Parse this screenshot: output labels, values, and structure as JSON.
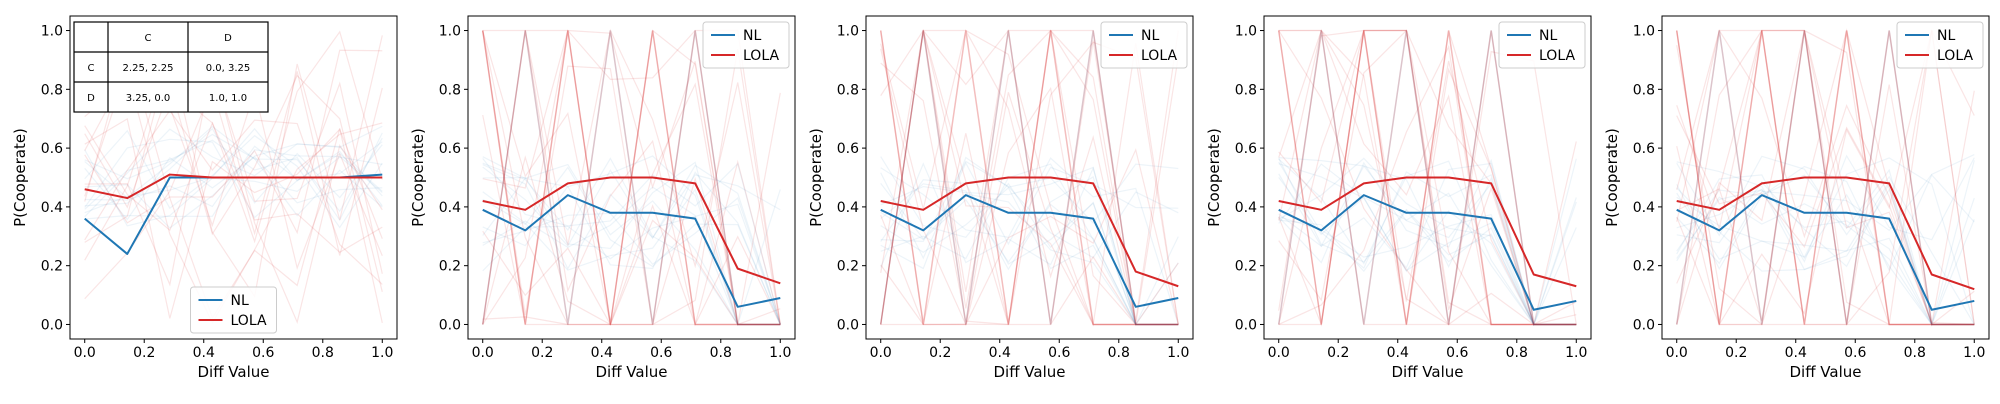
{
  "colors": {
    "nl": "#1f77b4",
    "lola": "#d62728"
  },
  "chart_data": [
    {
      "type": "line",
      "xlabel": "Diff Value",
      "ylabel": "P(Cooperate)",
      "xlim": [
        0.0,
        1.0
      ],
      "ylim": [
        0.0,
        1.0
      ],
      "x_ticks": [
        "0.0",
        "0.2",
        "0.4",
        "0.6",
        "0.8",
        "1.0"
      ],
      "y_ticks": [
        "0.0",
        "0.2",
        "0.4",
        "0.6",
        "0.8",
        "1.0"
      ],
      "legend_location": "lower-center",
      "x": [
        0.0,
        0.143,
        0.286,
        0.429,
        0.571,
        0.714,
        0.857,
        1.0
      ],
      "series": [
        {
          "name": "NL",
          "color": "#1f77b4",
          "values": [
            0.36,
            0.24,
            0.5,
            0.5,
            0.5,
            0.5,
            0.5,
            0.51
          ]
        },
        {
          "name": "LOLA",
          "color": "#d62728",
          "values": [
            0.46,
            0.43,
            0.51,
            0.5,
            0.5,
            0.5,
            0.5,
            0.5
          ]
        }
      ],
      "payoff_table": {
        "col_headers": [
          "C",
          "D"
        ],
        "rows": [
          {
            "label": "C",
            "cells": [
              "2.25, 2.25",
              "0.0, 3.25"
            ]
          },
          {
            "label": "D",
            "cells": [
              "3.25, 0.0",
              "1.0, 1.0"
            ]
          }
        ]
      }
    },
    {
      "type": "line",
      "xlabel": "Diff Value",
      "ylabel": "P(Cooperate)",
      "xlim": [
        0.0,
        1.0
      ],
      "ylim": [
        0.0,
        1.0
      ],
      "x_ticks": [
        "0.0",
        "0.2",
        "0.4",
        "0.6",
        "0.8",
        "1.0"
      ],
      "y_ticks": [
        "0.0",
        "0.2",
        "0.4",
        "0.6",
        "0.8",
        "1.0"
      ],
      "legend_location": "top-right",
      "x": [
        0.0,
        0.143,
        0.286,
        0.429,
        0.571,
        0.714,
        0.857,
        1.0
      ],
      "series": [
        {
          "name": "NL",
          "color": "#1f77b4",
          "values": [
            0.39,
            0.32,
            0.44,
            0.38,
            0.38,
            0.36,
            0.06,
            0.09
          ]
        },
        {
          "name": "LOLA",
          "color": "#d62728",
          "values": [
            0.42,
            0.39,
            0.48,
            0.5,
            0.5,
            0.48,
            0.19,
            0.14
          ]
        }
      ]
    },
    {
      "type": "line",
      "xlabel": "Diff Value",
      "ylabel": "P(Cooperate)",
      "xlim": [
        0.0,
        1.0
      ],
      "ylim": [
        0.0,
        1.0
      ],
      "x_ticks": [
        "0.0",
        "0.2",
        "0.4",
        "0.6",
        "0.8",
        "1.0"
      ],
      "y_ticks": [
        "0.0",
        "0.2",
        "0.4",
        "0.6",
        "0.8",
        "1.0"
      ],
      "legend_location": "top-right",
      "x": [
        0.0,
        0.143,
        0.286,
        0.429,
        0.571,
        0.714,
        0.857,
        1.0
      ],
      "series": [
        {
          "name": "NL",
          "color": "#1f77b4",
          "values": [
            0.39,
            0.32,
            0.44,
            0.38,
            0.38,
            0.36,
            0.06,
            0.09
          ]
        },
        {
          "name": "LOLA",
          "color": "#d62728",
          "values": [
            0.42,
            0.39,
            0.48,
            0.5,
            0.5,
            0.48,
            0.18,
            0.13
          ]
        }
      ]
    },
    {
      "type": "line",
      "xlabel": "Diff Value",
      "ylabel": "P(Cooperate)",
      "xlim": [
        0.0,
        1.0
      ],
      "ylim": [
        0.0,
        1.0
      ],
      "x_ticks": [
        "0.0",
        "0.2",
        "0.4",
        "0.6",
        "0.8",
        "1.0"
      ],
      "y_ticks": [
        "0.0",
        "0.2",
        "0.4",
        "0.6",
        "0.8",
        "1.0"
      ],
      "legend_location": "top-right",
      "x": [
        0.0,
        0.143,
        0.286,
        0.429,
        0.571,
        0.714,
        0.857,
        1.0
      ],
      "series": [
        {
          "name": "NL",
          "color": "#1f77b4",
          "values": [
            0.39,
            0.32,
            0.44,
            0.38,
            0.38,
            0.36,
            0.05,
            0.08
          ]
        },
        {
          "name": "LOLA",
          "color": "#d62728",
          "values": [
            0.42,
            0.39,
            0.48,
            0.5,
            0.5,
            0.48,
            0.17,
            0.13
          ]
        }
      ]
    },
    {
      "type": "line",
      "xlabel": "Diff Value",
      "ylabel": "P(Cooperate)",
      "xlim": [
        0.0,
        1.0
      ],
      "ylim": [
        0.0,
        1.0
      ],
      "x_ticks": [
        "0.0",
        "0.2",
        "0.4",
        "0.6",
        "0.8",
        "1.0"
      ],
      "y_ticks": [
        "0.0",
        "0.2",
        "0.4",
        "0.6",
        "0.8",
        "1.0"
      ],
      "legend_location": "top-right",
      "x": [
        0.0,
        0.143,
        0.286,
        0.429,
        0.571,
        0.714,
        0.857,
        1.0
      ],
      "series": [
        {
          "name": "NL",
          "color": "#1f77b4",
          "values": [
            0.39,
            0.32,
            0.44,
            0.38,
            0.38,
            0.36,
            0.05,
            0.08
          ]
        },
        {
          "name": "LOLA",
          "color": "#d62728",
          "values": [
            0.42,
            0.39,
            0.48,
            0.5,
            0.5,
            0.48,
            0.17,
            0.12
          ]
        }
      ]
    }
  ]
}
